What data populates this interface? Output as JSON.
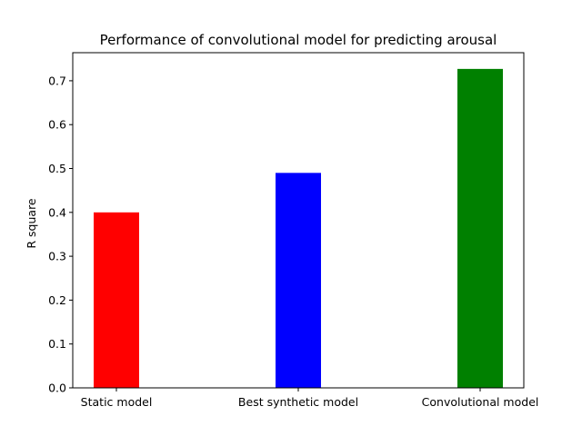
{
  "chart_data": {
    "type": "bar",
    "title": "Performance of convolutional model for predicting arousal",
    "xlabel": "",
    "ylabel": "R square",
    "categories": [
      "Static model",
      "Best synthetic model",
      "Convolutional model"
    ],
    "values": [
      0.4,
      0.49,
      0.727
    ],
    "colors": [
      "#ff0000",
      "#0000ff",
      "#008000"
    ],
    "ylim": [
      0,
      0.764
    ],
    "yticks": [
      0.0,
      0.1,
      0.2,
      0.3,
      0.4,
      0.5,
      0.6,
      0.7
    ],
    "ytick_labels": [
      "0.0",
      "0.1",
      "0.2",
      "0.3",
      "0.4",
      "0.5",
      "0.6",
      "0.7"
    ],
    "grid": false,
    "legend": "none"
  }
}
